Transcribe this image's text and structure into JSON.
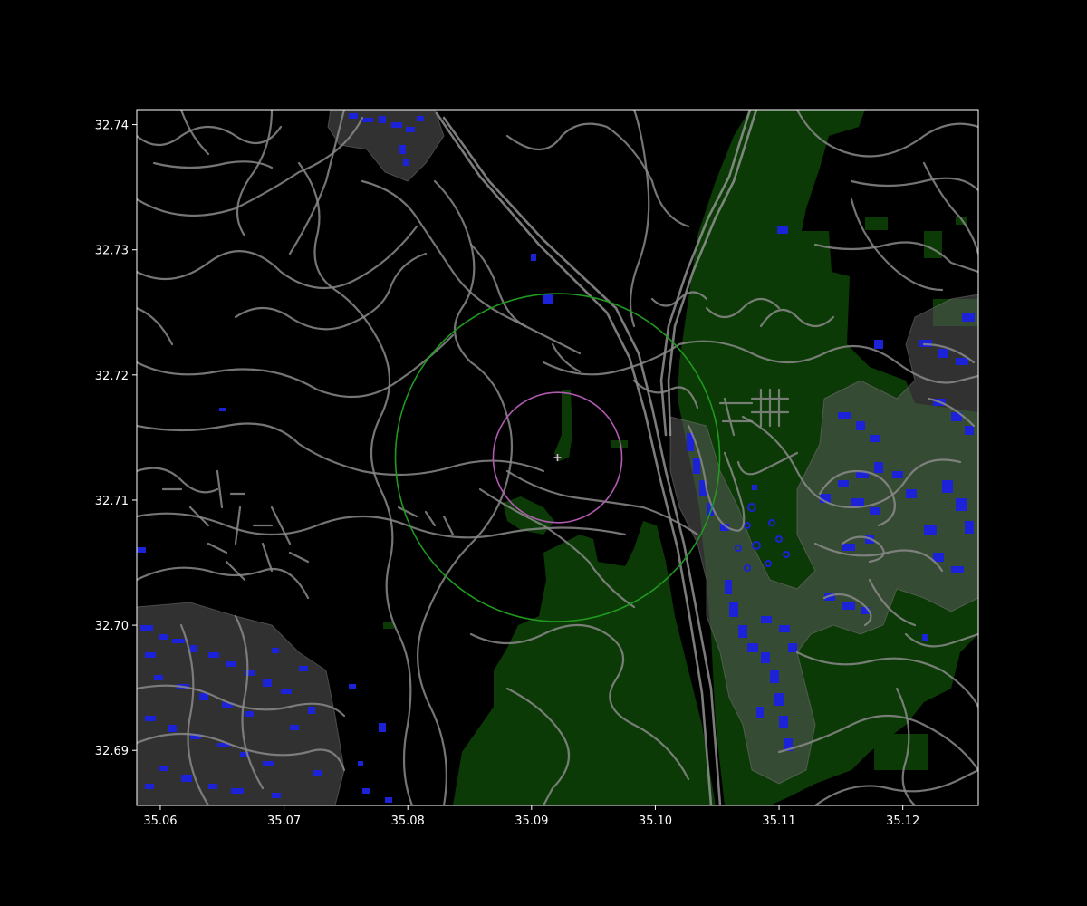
{
  "chart_data": {
    "type": "map",
    "x_ticks": [
      "35.06",
      "35.07",
      "35.08",
      "35.09",
      "35.10",
      "35.11",
      "35.12"
    ],
    "y_ticks": [
      "32.69",
      "32.70",
      "32.71",
      "32.72",
      "32.73",
      "32.74"
    ],
    "xlim": [
      35.0581,
      35.1261
    ],
    "ylim": [
      32.6856,
      32.7412
    ],
    "center": {
      "x": 35.0921,
      "y": 32.7134
    },
    "inner_radius_deg": 0.0052,
    "outer_radius_deg": 0.0131,
    "colors": {
      "background": "#000000",
      "roads": "#8a8a8a",
      "buildings": "#1c22d8",
      "building_buffers": "#5a5a5a",
      "vegetation": "#0c3a06",
      "outer_circle": "#1f9a1f",
      "inner_circle": "#b05ab0",
      "center_marker": "#e0b0e0"
    }
  }
}
